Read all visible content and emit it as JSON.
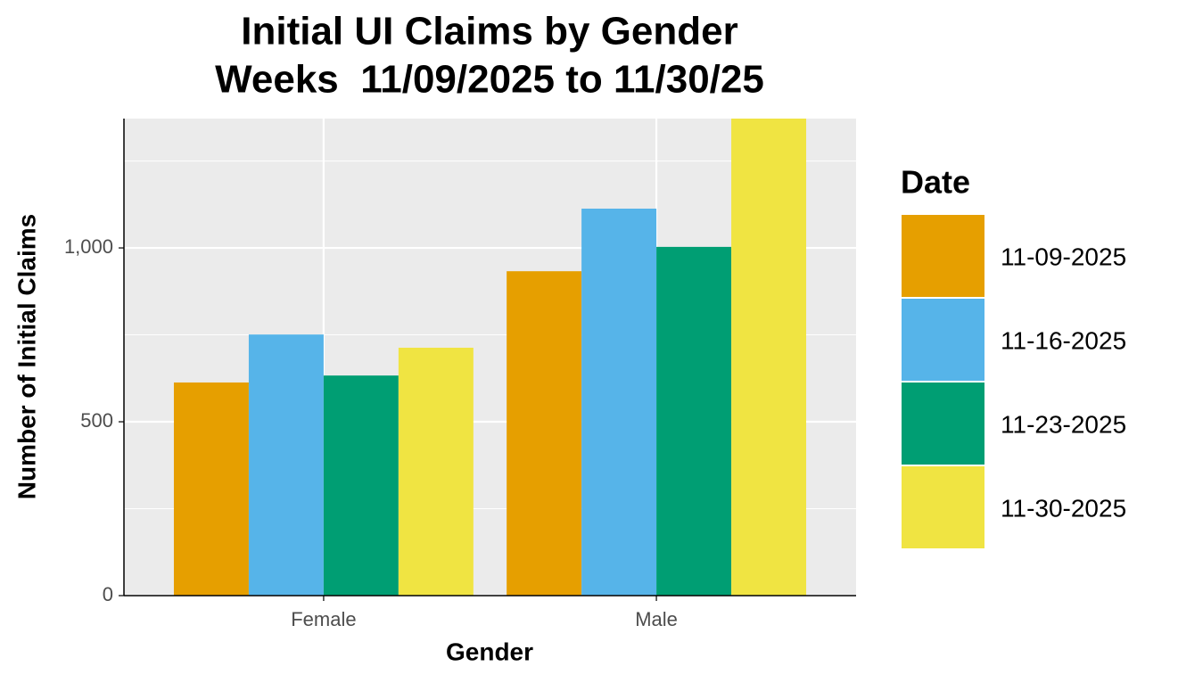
{
  "chart_data": {
    "type": "bar",
    "title": [
      "Initial UI Claims by Gender",
      "Weeks  11/09/2025 to 11/30/25"
    ],
    "x_label": "Gender",
    "y_label": "Number of Initial Claims",
    "categories": [
      "Female",
      "Male"
    ],
    "legend_title": "Date",
    "series": [
      {
        "name": "11-09-2025",
        "color": "#E69F00",
        "values": [
          613,
          933
        ]
      },
      {
        "name": "11-16-2025",
        "color": "#56B4E9",
        "values": [
          751,
          1113
        ]
      },
      {
        "name": "11-23-2025",
        "color": "#009E73",
        "values": [
          633,
          1003
        ]
      },
      {
        "name": "11-30-2025",
        "color": "#F0E442",
        "values": [
          713,
          1372
        ]
      }
    ],
    "ylim": [
      0,
      1372
    ],
    "yticks": [
      0,
      500,
      {
        "value": 1000,
        "label": "1,000"
      }
    ],
    "minor_yticks": [
      250,
      750,
      1250
    ],
    "grid": true,
    "legend": "right"
  }
}
